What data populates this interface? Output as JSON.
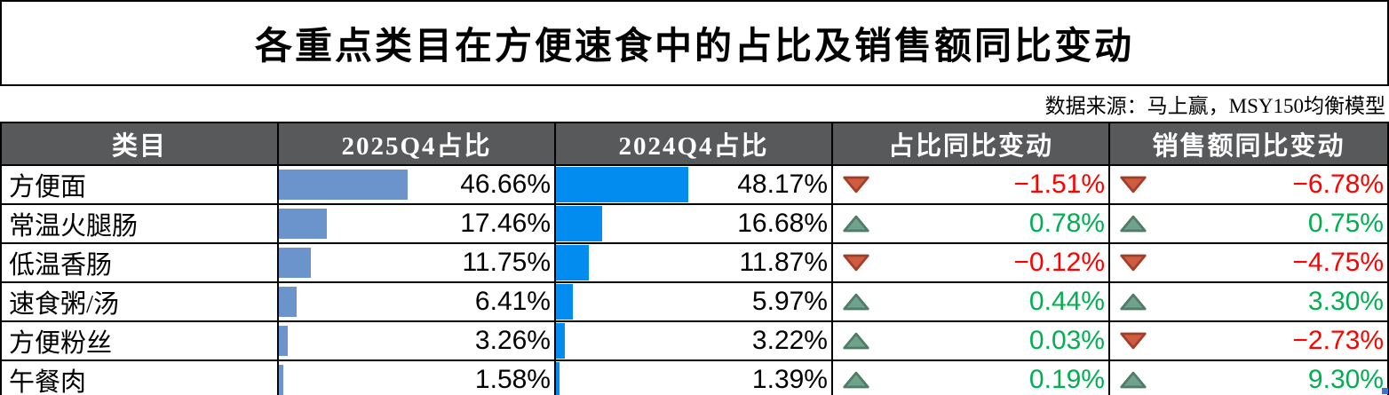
{
  "title": "各重点类目在方便速食中的占比及销售额同比变动",
  "source_note": "数据来源：马上赢，MSY150均衡模型",
  "colors": {
    "header_bg": "#58595B",
    "bar_2025": "#6B93CC",
    "bar_2024": "#038CF0",
    "positive_text": "#00B050",
    "negative_text": "#FF0000",
    "up_triangle": "#6FA18B",
    "down_triangle": "#CD5C41"
  },
  "table": {
    "headers": [
      "类目",
      "2025Q4占比",
      "2024Q4占比",
      "占比同比变动",
      "销售额同比变动"
    ],
    "rows": [
      {
        "category": "方便面",
        "share_2025": "46.66%",
        "share_2025_val": 46.66,
        "share_2024": "48.17%",
        "share_2024_val": 48.17,
        "share_change": "−1.51%",
        "share_change_dir": "down",
        "sales_change": "−6.78%",
        "sales_change_dir": "down"
      },
      {
        "category": "常温火腿肠",
        "share_2025": "17.46%",
        "share_2025_val": 17.46,
        "share_2024": "16.68%",
        "share_2024_val": 16.68,
        "share_change": "0.78%",
        "share_change_dir": "up",
        "sales_change": "0.75%",
        "sales_change_dir": "up"
      },
      {
        "category": "低温香肠",
        "share_2025": "11.75%",
        "share_2025_val": 11.75,
        "share_2024": "11.87%",
        "share_2024_val": 11.87,
        "share_change": "−0.12%",
        "share_change_dir": "down",
        "sales_change": "−4.75%",
        "sales_change_dir": "down"
      },
      {
        "category": "速食粥/汤",
        "share_2025": "6.41%",
        "share_2025_val": 6.41,
        "share_2024": "5.97%",
        "share_2024_val": 5.97,
        "share_change": "0.44%",
        "share_change_dir": "up",
        "sales_change": "3.30%",
        "sales_change_dir": "up"
      },
      {
        "category": "方便粉丝",
        "share_2025": "3.26%",
        "share_2025_val": 3.26,
        "share_2024": "3.22%",
        "share_2024_val": 3.22,
        "share_change": "0.03%",
        "share_change_dir": "up",
        "sales_change": "−2.73%",
        "sales_change_dir": "down"
      },
      {
        "category": "午餐肉",
        "share_2025": "1.58%",
        "share_2025_val": 1.58,
        "share_2024": "1.39%",
        "share_2024_val": 1.39,
        "share_change": "0.19%",
        "share_change_dir": "up",
        "sales_change": "9.30%",
        "sales_change_dir": "up"
      }
    ]
  },
  "chart_data": {
    "type": "table",
    "title": "各重点类目在方便速食中的占比及销售额同比变动",
    "source": "数据来源：马上赢，MSY150均衡模型",
    "columns": [
      "类目",
      "2025Q4占比",
      "2024Q4占比",
      "占比同比变动",
      "销售额同比变动"
    ],
    "rows": [
      {
        "category": "方便面",
        "share_2025_pct": 46.66,
        "share_2024_pct": 48.17,
        "share_change_pct": -1.51,
        "sales_change_pct": -6.78
      },
      {
        "category": "常温火腿肠",
        "share_2025_pct": 17.46,
        "share_2024_pct": 16.68,
        "share_change_pct": 0.78,
        "sales_change_pct": 0.75
      },
      {
        "category": "低温香肠",
        "share_2025_pct": 11.75,
        "share_2024_pct": 11.87,
        "share_change_pct": -0.12,
        "sales_change_pct": -4.75
      },
      {
        "category": "速食粥/汤",
        "share_2025_pct": 6.41,
        "share_2024_pct": 5.97,
        "share_change_pct": 0.44,
        "sales_change_pct": 3.3
      },
      {
        "category": "方便粉丝",
        "share_2025_pct": 3.26,
        "share_2024_pct": 3.22,
        "share_change_pct": 0.03,
        "sales_change_pct": -2.73
      },
      {
        "category": "午餐肉",
        "share_2025_pct": 1.58,
        "share_2024_pct": 1.39,
        "share_change_pct": 0.19,
        "sales_change_pct": 9.3
      }
    ],
    "notes": "Data bars in 2025Q4 and 2024Q4 columns scaled so bar width equals percentage value of cell width; red down-triangles mark negative changes, green up-triangles mark positive changes."
  }
}
